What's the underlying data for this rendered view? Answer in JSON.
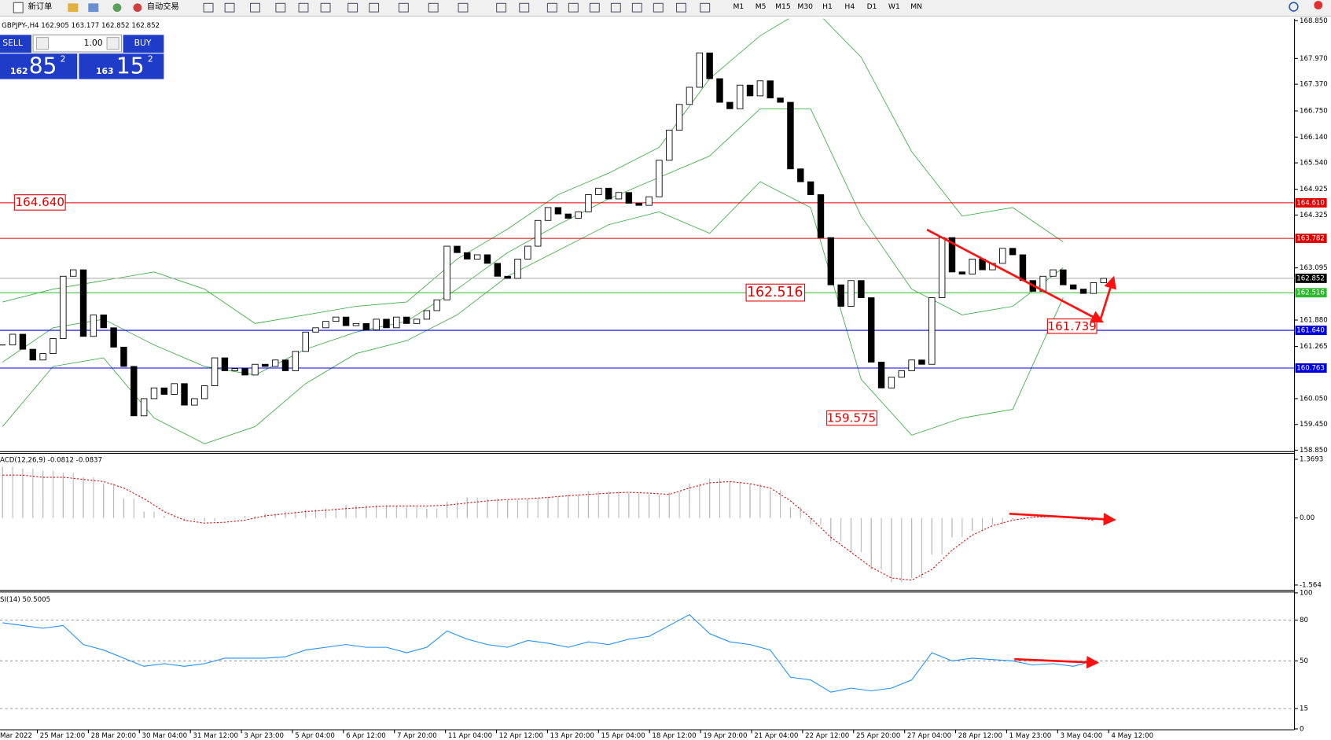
{
  "toolbar": {
    "new_order": "新订单",
    "auto_trading": "自动交易",
    "timeframes": [
      "M1",
      "M5",
      "M15",
      "M30",
      "H1",
      "H4",
      "D1",
      "W1",
      "MN"
    ]
  },
  "trade_panel": {
    "sell": "SELL",
    "buy": "BUY",
    "lot": "1.00",
    "sell_big": "162",
    "sell_main": "85",
    "sell_sup": "2",
    "buy_big": "163",
    "buy_main": "15",
    "buy_sup": "2"
  },
  "chart_data": [
    {
      "type": "candlestick",
      "title": "GBPJPY-,H4 162.905 163.177 162.852 162.852",
      "closes": [
        161.3,
        161.55,
        161.2,
        160.95,
        161.1,
        161.45,
        162.9,
        163.05,
        161.5,
        162.0,
        161.7,
        161.25,
        160.8,
        159.65,
        160.05,
        160.3,
        160.15,
        160.4,
        159.9,
        160.05,
        160.35,
        161.0,
        160.7,
        160.75,
        160.6,
        160.85,
        160.8,
        160.95,
        160.7,
        161.15,
        161.6,
        161.7,
        161.85,
        161.95,
        161.75,
        161.8,
        161.65,
        161.9,
        161.7,
        161.95,
        161.8,
        161.9,
        162.1,
        162.35,
        163.6,
        163.45,
        163.3,
        163.4,
        163.2,
        162.9,
        162.85,
        163.3,
        163.6,
        164.2,
        164.5,
        164.35,
        164.25,
        164.4,
        164.8,
        164.95,
        164.7,
        164.85,
        164.6,
        164.55,
        164.75,
        165.6,
        166.3,
        166.9,
        167.3,
        168.1,
        167.5,
        166.95,
        166.8,
        167.35,
        167.1,
        167.45,
        167.05,
        166.95,
        165.4,
        165.1,
        164.8,
        163.8,
        162.7,
        162.2,
        162.8,
        162.4,
        160.9,
        160.3,
        160.55,
        160.7,
        160.95,
        160.85,
        162.4,
        163.8,
        163.0,
        162.95,
        163.3,
        163.05,
        163.2,
        163.55,
        163.4,
        162.8,
        162.55,
        162.9,
        163.05,
        162.7,
        162.6,
        162.5,
        162.75,
        162.85
      ],
      "up_color": "#ffffff",
      "down_color": "#000000",
      "band_color": "#3cb043",
      "band_upper": [
        162.3,
        162.6,
        162.8,
        163.0,
        162.6,
        161.8,
        162.0,
        162.2,
        162.3,
        163.3,
        164.0,
        164.8,
        165.3,
        165.9,
        167.5,
        168.5,
        169.2,
        168.0,
        165.8,
        164.3,
        164.5,
        163.7
      ],
      "band_middle": [
        160.9,
        161.7,
        161.9,
        161.3,
        160.8,
        160.6,
        161.2,
        161.6,
        161.85,
        162.6,
        163.45,
        164.1,
        164.7,
        165.2,
        165.7,
        166.8,
        166.8,
        164.3,
        162.6,
        162.0,
        162.2,
        163.1
      ],
      "band_lower": [
        159.4,
        160.8,
        161.0,
        159.6,
        159.0,
        159.4,
        160.4,
        161.1,
        161.4,
        162.0,
        162.9,
        163.5,
        164.1,
        164.4,
        163.9,
        165.1,
        164.5,
        160.5,
        159.2,
        159.6,
        159.8,
        162.4
      ],
      "levels": [
        {
          "value": 164.61,
          "label": "164.610",
          "color": "#e00000"
        },
        {
          "value": 163.782,
          "label": "163.782",
          "color": "#e00000"
        },
        {
          "value": 162.516,
          "label": "162.516",
          "color": "#2db82d"
        },
        {
          "value": 161.64,
          "label": "161.640",
          "color": "#0000e0"
        },
        {
          "value": 160.763,
          "label": "160.763",
          "color": "#0000e0"
        }
      ],
      "current": {
        "value": 162.852,
        "label": "162.852",
        "color": "#000000"
      },
      "annotations": [
        "164.640",
        "162.516",
        "159.575",
        "161.739"
      ],
      "ylim": [
        158.816,
        168.896
      ],
      "yticks": [
        {
          "value": 168.85,
          "label": "168.850"
        },
        {
          "value": 167.97,
          "label": "167.970"
        },
        {
          "value": 167.37,
          "label": "167.370"
        },
        {
          "value": 166.75,
          "label": "166.750"
        },
        {
          "value": 166.14,
          "label": "166.140"
        },
        {
          "value": 165.54,
          "label": "165.540"
        },
        {
          "value": 164.925,
          "label": "164.925"
        },
        {
          "value": 164.325,
          "label": "164.325"
        },
        {
          "value": 163.095,
          "label": "163.095"
        },
        {
          "value": 161.88,
          "label": "161.880"
        },
        {
          "value": 161.265,
          "label": "161.265"
        },
        {
          "value": 160.05,
          "label": "160.050"
        },
        {
          "value": 159.45,
          "label": "159.450"
        },
        {
          "value": 158.85,
          "label": "158.850"
        }
      ],
      "time_labels": [
        "Mar 2022",
        "25 Mar 12:00",
        "28 Mar 20:00",
        "30 Mar 04:00",
        "31 Mar 12:00",
        "3 Apr 23:00",
        "5 Apr 04:00",
        "6 Apr 12:00",
        "7 Apr 20:00",
        "11 Apr 04:00",
        "12 Apr 12:00",
        "13 Apr 20:00",
        "15 Apr 04:00",
        "18 Apr 12:00",
        "19 Apr 20:00",
        "21 Apr 04:00",
        "22 Apr 12:00",
        "25 Apr 20:00",
        "27 Apr 04:00",
        "28 Apr 12:00",
        "1 May 23:00",
        "3 May 04:00",
        "4 May 12:00"
      ]
    },
    {
      "type": "macd",
      "title": "ACD(12,26,9) -0.0812 -0.0837",
      "histogram": [
        1.2,
        1.15,
        1.1,
        1.05,
        0.95,
        0.8,
        0.45,
        0.15,
        0.05,
        -0.05,
        -0.08,
        -0.02,
        0.05,
        0.1,
        0.15,
        0.2,
        0.22,
        0.3,
        0.3,
        0.28,
        0.25,
        0.22,
        0.38,
        0.48,
        0.45,
        0.42,
        0.45,
        0.5,
        0.55,
        0.62,
        0.62,
        0.58,
        0.55,
        0.6,
        0.8,
        0.92,
        0.85,
        0.8,
        0.65,
        0.25,
        -0.15,
        -0.55,
        -0.8,
        -1.2,
        -1.5,
        -1.4,
        -0.85,
        -0.45,
        -0.3,
        -0.15,
        -0.05,
        0.02,
        0.0,
        -0.03,
        -0.08
      ],
      "signal": [
        1.0,
        1.0,
        0.95,
        0.95,
        0.9,
        0.85,
        0.7,
        0.45,
        0.15,
        -0.05,
        -0.12,
        -0.1,
        -0.05,
        0.05,
        0.1,
        0.15,
        0.18,
        0.22,
        0.25,
        0.28,
        0.28,
        0.28,
        0.3,
        0.35,
        0.4,
        0.43,
        0.45,
        0.48,
        0.52,
        0.55,
        0.58,
        0.6,
        0.58,
        0.55,
        0.7,
        0.82,
        0.85,
        0.8,
        0.7,
        0.4,
        0.0,
        -0.45,
        -0.8,
        -1.15,
        -1.4,
        -1.45,
        -1.2,
        -0.75,
        -0.4,
        -0.18,
        -0.05,
        0.02,
        0.03,
        0.0,
        -0.05
      ],
      "histogram_color": "#b8b8b8",
      "signal_color": "#e00000",
      "ylim": [
        -1.667,
        1.508
      ],
      "yticks": [
        1.3693,
        {
          "value": 0,
          "label": "0.00"
        },
        -1.564
      ]
    },
    {
      "type": "line",
      "title": "SI(14) 50.5005",
      "values": [
        78,
        76,
        74,
        76,
        62,
        58,
        52,
        46,
        48,
        46,
        48,
        52,
        52,
        52,
        53,
        58,
        60,
        62,
        60,
        60,
        56,
        60,
        72,
        66,
        62,
        60,
        65,
        63,
        60,
        64,
        62,
        66,
        68,
        76,
        84,
        70,
        64,
        62,
        58,
        38,
        36,
        27,
        30,
        28,
        30,
        36,
        56,
        50,
        52,
        51,
        50,
        47,
        48,
        46,
        50
      ],
      "color": "#1e90ff",
      "ylim": [
        0,
        100
      ],
      "yticks": [
        100,
        80,
        50,
        15,
        0
      ],
      "dashed_levels": [
        80,
        50,
        15
      ]
    }
  ]
}
